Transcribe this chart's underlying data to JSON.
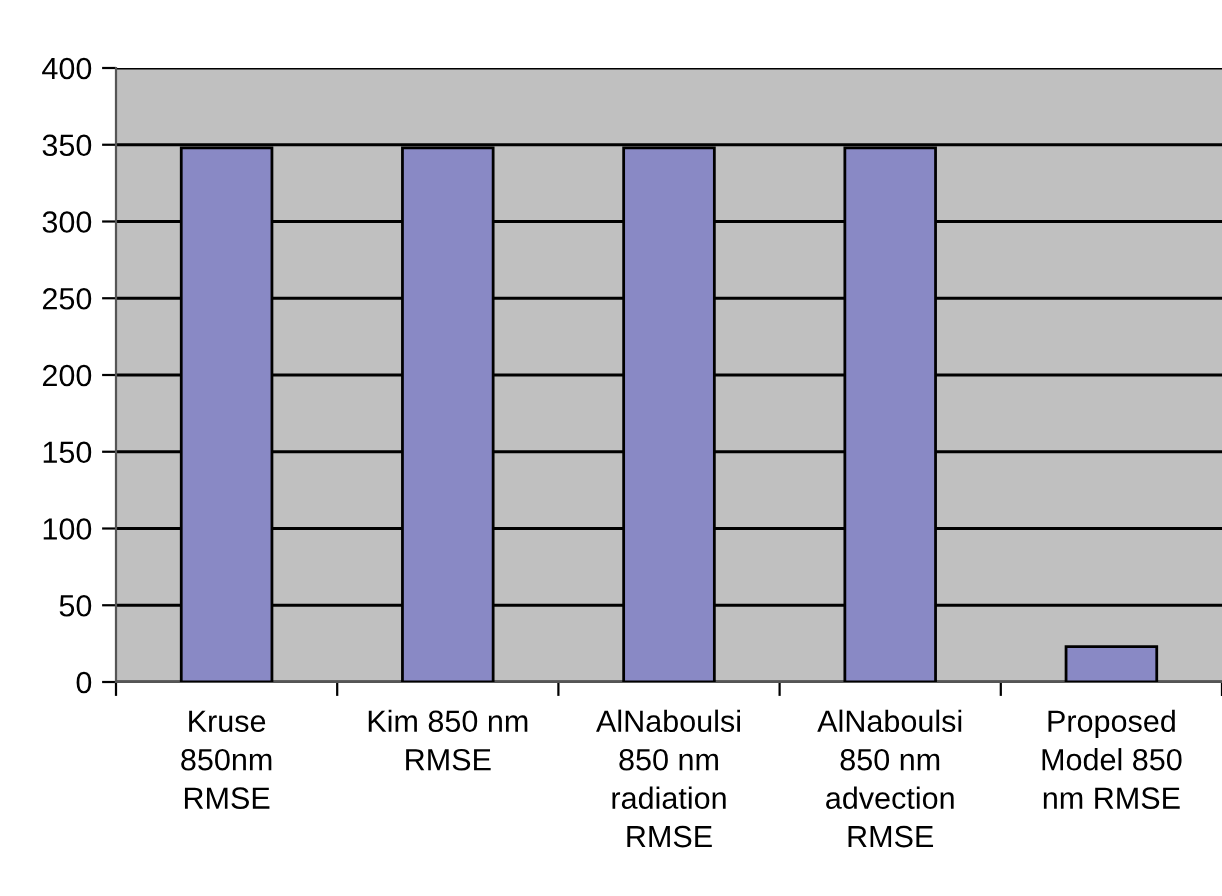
{
  "chart_data": {
    "type": "bar",
    "categories": [
      "Kruse\n850nm\nRMSE",
      "Kim 850 nm\nRMSE",
      "AlNaboulsi\n850 nm\nradiation\nRMSE",
      "AlNaboulsi\n850 nm\nadvection\nRMSE",
      "Proposed\nModel 850\nnm RMSE"
    ],
    "values": [
      348,
      348,
      348,
      348,
      23
    ],
    "color": "#8989c5",
    "ylim": [
      0,
      400
    ],
    "yticks": [
      0,
      50,
      100,
      150,
      200,
      250,
      300,
      350,
      400
    ],
    "grid": "y",
    "legend": false
  }
}
